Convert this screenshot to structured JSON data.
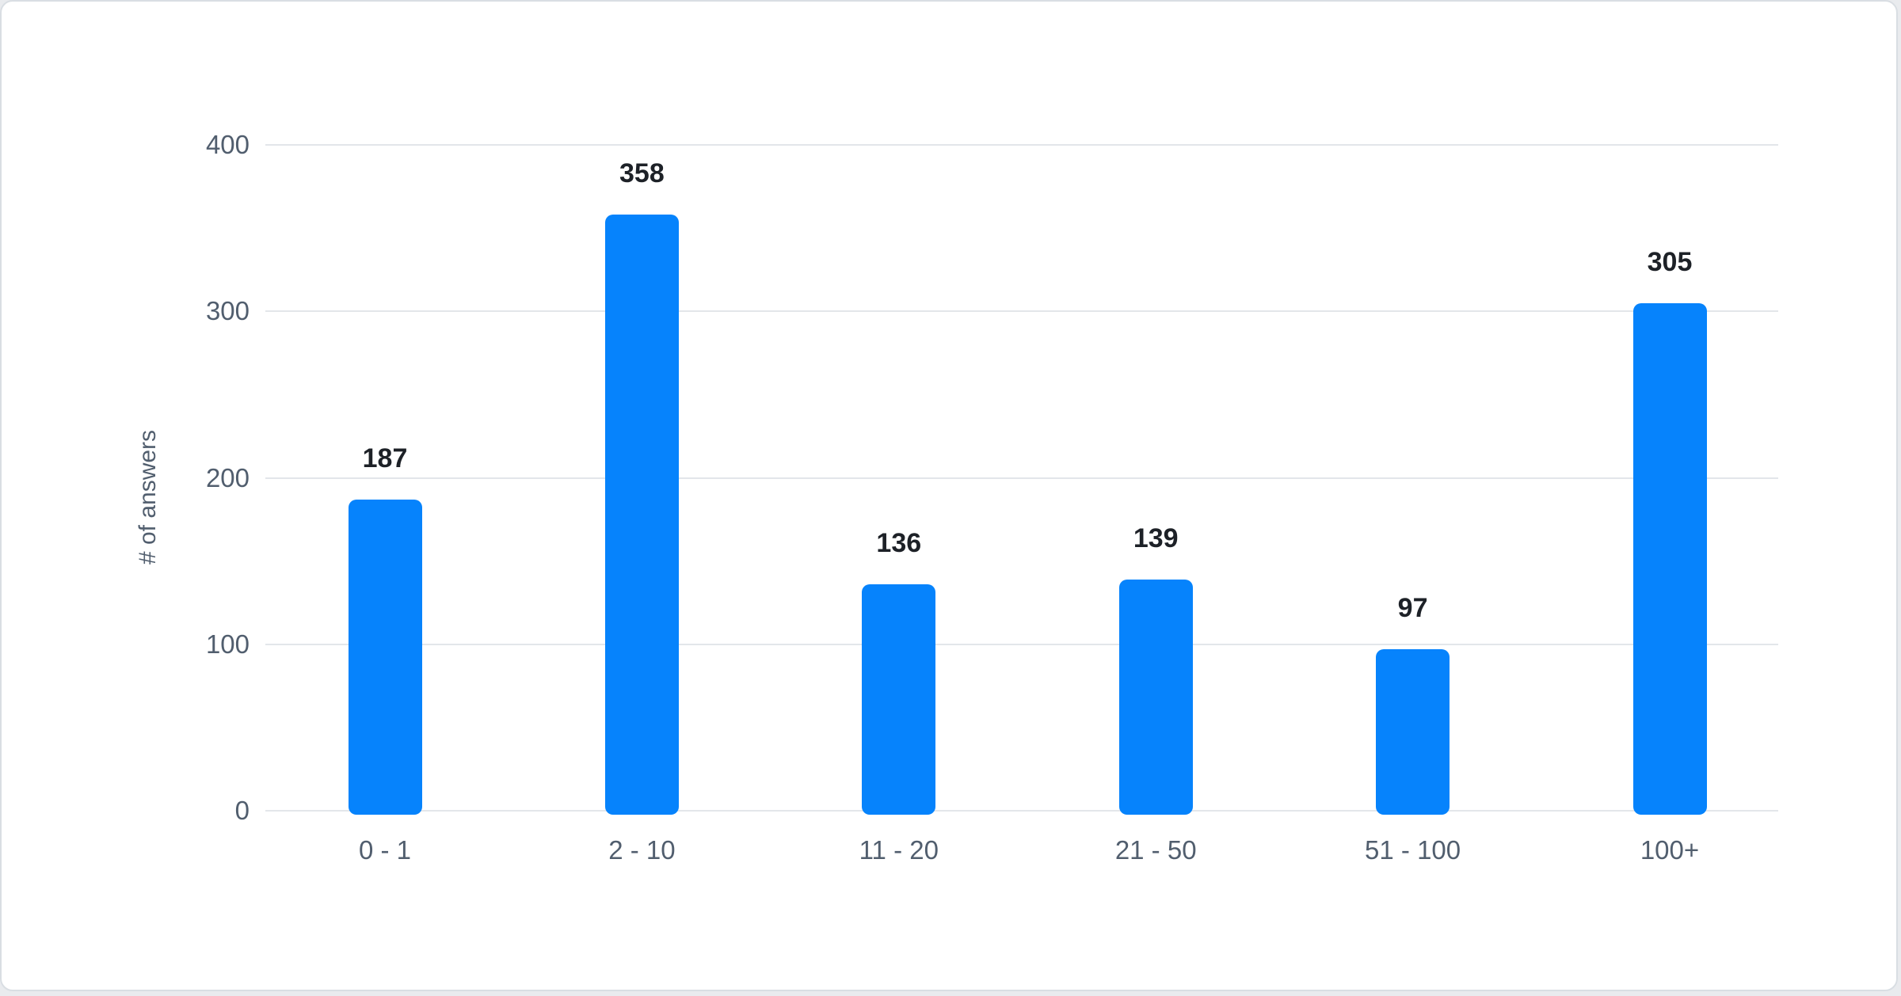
{
  "chart_data": {
    "type": "bar",
    "title": "",
    "categories": [
      "0 - 1",
      "2 - 10",
      "11 - 20",
      "21 - 50",
      "51 - 100",
      "100+"
    ],
    "values": [
      187,
      358,
      136,
      139,
      97,
      305
    ],
    "value_labels": [
      "187",
      "358",
      "136",
      "139",
      "97",
      "305"
    ],
    "xlabel": "",
    "ylabel": "# of answers",
    "ylim": [
      0,
      400
    ],
    "yticks": [
      0,
      100,
      200,
      300,
      400
    ],
    "ytick_labels": [
      "0",
      "100",
      "200",
      "300",
      "400"
    ],
    "grid": true,
    "legend": false,
    "colors": {
      "bar": "#0683fc",
      "gridline": "#e3e6ea",
      "axis_text": "#515e6e",
      "value_label_text": "#1d2127",
      "card_background": "#ffffff",
      "card_border": "#d9dee3"
    }
  }
}
